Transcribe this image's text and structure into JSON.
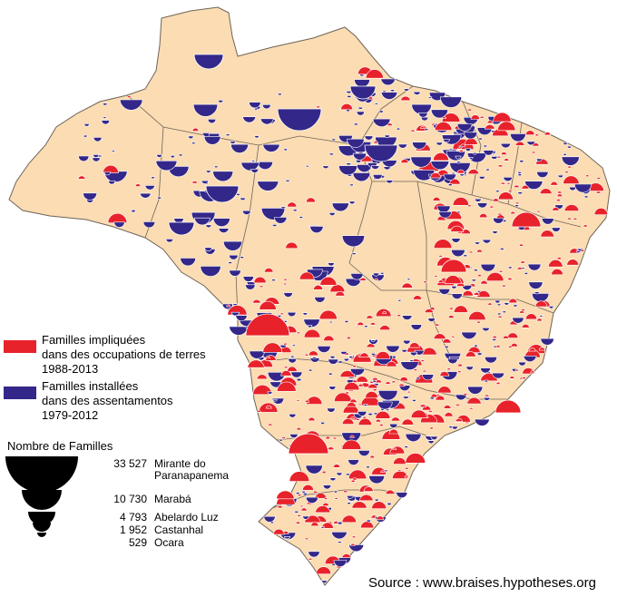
{
  "legend": {
    "occupations_line1": "Familles impliquées",
    "occupations_line2": "dans des occupations de terres",
    "occupations_line3": "1988-2013",
    "settlements_line1": "Familles installées",
    "settlements_line2": "dans des assentamentos",
    "settlements_line3": "1979-2012",
    "size_title": "Nombre de Familles",
    "sizes": [
      {
        "value": "33 527",
        "name": "Mirante do Paranapanema"
      },
      {
        "value": "10 730",
        "name": "Marabá"
      },
      {
        "value": "4 793",
        "name": "Abelardo Luz"
      },
      {
        "value": "1 952",
        "name": "Castanhal"
      },
      {
        "value": "529",
        "name": "Ocara"
      }
    ]
  },
  "source": "Source : www.braises.hypotheses.org",
  "colors": {
    "land": "#fbdcb3",
    "border": "#6e6457",
    "occupations": "#e8222b",
    "settlements": "#33278a",
    "symbol_outline": "#ffffff",
    "legend_symbol": "#000000"
  }
}
